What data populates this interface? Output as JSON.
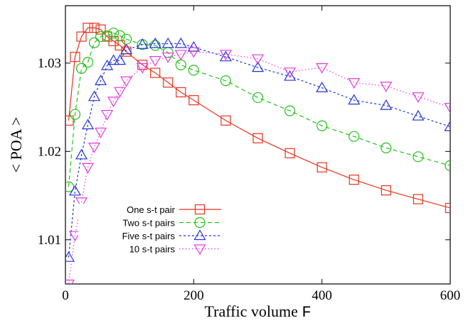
{
  "chart_data": {
    "type": "line",
    "xlabel": "Traffic volume ",
    "xlabel_symbol": "F",
    "ylabel": "< POA >",
    "xlim": [
      0,
      600
    ],
    "ylim": [
      1.005,
      1.0365
    ],
    "xticks": [
      0,
      200,
      400,
      600
    ],
    "xtick_labels": [
      "0",
      "200",
      "400",
      "600"
    ],
    "yticks": [
      1.01,
      1.02,
      1.03
    ],
    "ytick_labels": [
      "1.01",
      "1.02",
      "1.03"
    ],
    "grid": false,
    "legend_position": "bottom-left",
    "series": [
      {
        "name": "One s-t pair",
        "color": "#e8331c",
        "marker": "square",
        "dash": "",
        "x": [
          5,
          15,
          25,
          35,
          45,
          55,
          65,
          75,
          85,
          95,
          120,
          140,
          160,
          180,
          200,
          250,
          300,
          350,
          400,
          450,
          500,
          550,
          600
        ],
        "y": [
          1.0235,
          1.0307,
          1.033,
          1.034,
          1.034,
          1.0338,
          1.033,
          1.0325,
          1.032,
          1.0313,
          1.0298,
          1.0289,
          1.0278,
          1.0267,
          1.0258,
          1.0235,
          1.0215,
          1.0198,
          1.0182,
          1.0168,
          1.0156,
          1.0146,
          1.0136
        ]
      },
      {
        "name": "Two s-t pairs",
        "color": "#22c21a",
        "marker": "circle",
        "dash": "6,4",
        "x": [
          5,
          15,
          25,
          35,
          45,
          55,
          65,
          75,
          85,
          95,
          120,
          140,
          160,
          180,
          200,
          250,
          300,
          350,
          400,
          450,
          500,
          550,
          600
        ],
        "y": [
          1.016,
          1.0242,
          1.0294,
          1.0301,
          1.0323,
          1.033,
          1.0331,
          1.0334,
          1.0331,
          1.0327,
          1.0321,
          1.032,
          1.0312,
          1.0298,
          1.0292,
          1.028,
          1.0261,
          1.0246,
          1.0229,
          1.0217,
          1.0204,
          1.0194,
          1.0184
        ]
      },
      {
        "name": "Five s-t pairs",
        "color": "#2233d8",
        "marker": "triangle-up",
        "dash": "3,3",
        "x": [
          5,
          15,
          25,
          35,
          45,
          55,
          65,
          75,
          85,
          95,
          120,
          140,
          160,
          180,
          200,
          250,
          300,
          350,
          400,
          450,
          500,
          550,
          600
        ],
        "y": [
          1.008,
          1.0155,
          1.0196,
          1.023,
          1.0262,
          1.028,
          1.0297,
          1.0303,
          1.0303,
          1.0315,
          1.0321,
          1.0322,
          1.0322,
          1.0322,
          1.0318,
          1.0307,
          1.0295,
          1.0285,
          1.0272,
          1.0258,
          1.0252,
          1.024,
          1.0228
        ]
      },
      {
        "name": "10 s-t pairs",
        "color": "#e23be0",
        "marker": "triangle-down",
        "dash": "1.5,3",
        "x": [
          5,
          15,
          25,
          35,
          45,
          55,
          65,
          75,
          85,
          95,
          120,
          140,
          160,
          180,
          200,
          250,
          300,
          350,
          400,
          450,
          500,
          550,
          600
        ],
        "y": [
          1.005,
          1.0105,
          1.0143,
          1.0182,
          1.0205,
          1.0222,
          1.0242,
          1.0257,
          1.0268,
          1.028,
          1.0295,
          1.0303,
          1.0307,
          1.031,
          1.0313,
          1.031,
          1.0305,
          1.029,
          1.0295,
          1.0278,
          1.0274,
          1.0262,
          1.025
        ]
      }
    ]
  }
}
